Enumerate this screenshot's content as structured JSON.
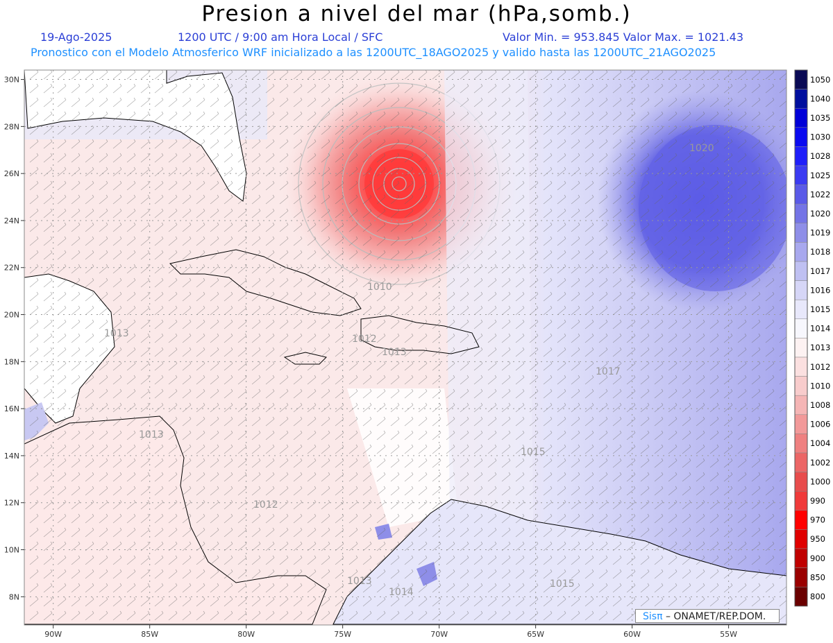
{
  "title": "Presion a nivel del mar (hPa,somb.)",
  "header": {
    "date": "19-Ago-2025",
    "time": "1200 UTC / 9:00 am Hora Local / SFC",
    "minmax": "Valor Min. = 953.845  Valor Max. = 1021.43",
    "forecast": "Pronostico con el Modelo Atmosferico WRF inicializado a las 1200UTC_18AGO2025 y valido hasta las  1200UTC_21AGO2025"
  },
  "lat_labels": [
    "30N",
    "28N",
    "26N",
    "24N",
    "22N",
    "20N",
    "18N",
    "16N",
    "14N",
    "12N",
    "10N",
    "8N"
  ],
  "lon_labels": [
    "90W",
    "85W",
    "80W",
    "75W",
    "70W",
    "65W",
    "60W",
    "55W"
  ],
  "colorbar": {
    "labels": [
      "1050",
      "1040",
      "1035",
      "1030",
      "1028",
      "1025",
      "1022",
      "1020",
      "1019",
      "1018",
      "1017",
      "1016",
      "1015",
      "1014",
      "1013",
      "1012",
      "1010",
      "1008",
      "1006",
      "1004",
      "1002",
      "1000",
      "990",
      "970",
      "950",
      "900",
      "850",
      "800"
    ],
    "colors": [
      "#0a0a55",
      "#000f9e",
      "#0000d8",
      "#0a0af0",
      "#1e1efa",
      "#3b3bf2",
      "#5a5ae8",
      "#7474e6",
      "#8e8ee8",
      "#a8a8ee",
      "#bfc0f2",
      "#d6d6f7",
      "#e8e8fb",
      "#f7f7fd",
      "#fdf2f2",
      "#fbe0e0",
      "#f8cccc",
      "#f5b5b5",
      "#f29999",
      "#ef8080",
      "#ec6666",
      "#e84c4c",
      "#f03a3a",
      "#ff0000",
      "#e00000",
      "#c00000",
      "#9a0000",
      "#6a0000"
    ]
  },
  "contour_labels": [
    {
      "text": "1020"
    },
    {
      "text": "1010"
    },
    {
      "text": "1012"
    },
    {
      "text": "1013"
    },
    {
      "text": "1013"
    },
    {
      "text": "1017"
    },
    {
      "text": "1015"
    },
    {
      "text": "1013"
    },
    {
      "text": "1012"
    },
    {
      "text": "1013"
    },
    {
      "text": "1014"
    },
    {
      "text": "1015"
    }
  ],
  "credit": {
    "brand": "Sisπ",
    "org": "– ONAMET/REP.DOM."
  },
  "colors": {
    "low": "#ff3b3b",
    "high": "#5a5ae8",
    "land": "#ffffff",
    "coast": "#000000"
  }
}
